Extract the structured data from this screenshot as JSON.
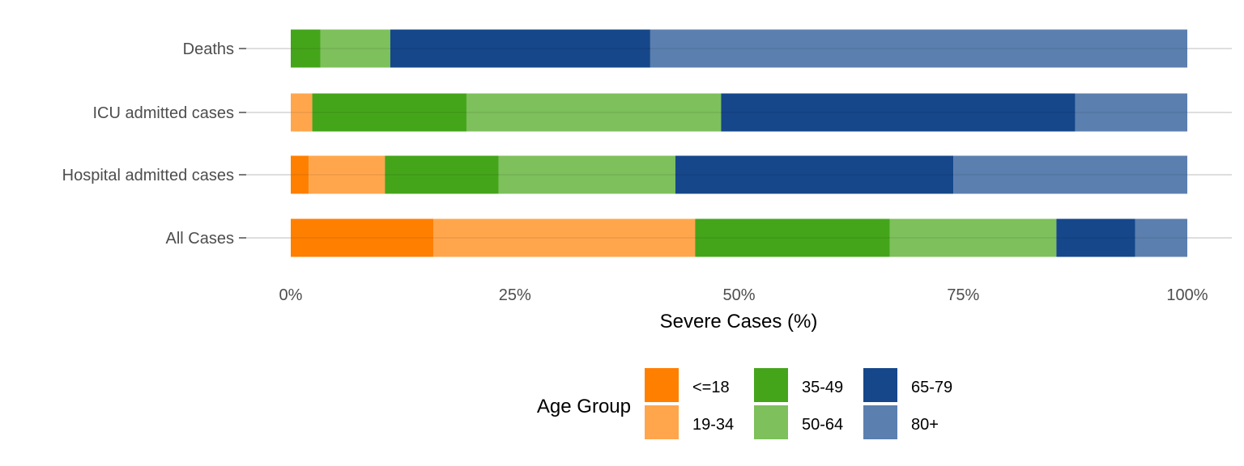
{
  "chart_data": {
    "type": "bar",
    "orientation": "horizontal",
    "stacked": true,
    "percent": true,
    "categories": [
      "Deaths",
      "ICU admitted cases",
      "Hospital admitted cases",
      "All Cases"
    ],
    "series": [
      {
        "name": "<=18",
        "color": "#ff7f00",
        "values": [
          0.0,
          0.0,
          2.0,
          15.9
        ]
      },
      {
        "name": "19-34",
        "color": "#ffa64d",
        "values": [
          0.0,
          2.4,
          8.5,
          29.2
        ]
      },
      {
        "name": "35-49",
        "color": "#44a51b",
        "values": [
          3.3,
          17.2,
          12.7,
          21.7
        ]
      },
      {
        "name": "50-64",
        "color": "#7dc05c",
        "values": [
          7.8,
          28.4,
          19.7,
          18.6
        ]
      },
      {
        "name": "65-79",
        "color": "#15478a",
        "values": [
          29.0,
          39.5,
          31.0,
          8.8
        ]
      },
      {
        "name": "80+",
        "color": "#5b7fae",
        "values": [
          59.9,
          12.5,
          26.1,
          5.8
        ]
      }
    ],
    "xlabel": "Severe Cases (%)",
    "ylabel": "",
    "xlim": [
      0,
      100
    ],
    "x_ticks": [
      "0%",
      "25%",
      "50%",
      "75%",
      "100%"
    ],
    "grid": "horizontal major lines",
    "legend": {
      "title": "Age Group",
      "position": "bottom",
      "layout": "3 columns x 2 rows"
    }
  }
}
